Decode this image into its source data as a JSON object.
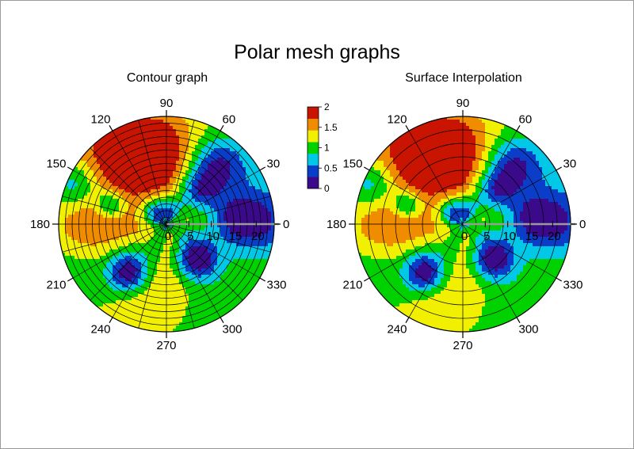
{
  "title": "Polar mesh graphs",
  "colorscale": {
    "ticks": [
      "2",
      "1.5",
      "1",
      "0.5",
      "0"
    ],
    "range": [
      0,
      2
    ],
    "colors": [
      "#3a0a8a",
      "#0a3ec8",
      "#00c8e6",
      "#00d200",
      "#f0f000",
      "#f08c00",
      "#c81400"
    ]
  },
  "chart_data": [
    {
      "type": "heatmap",
      "subtype": "polar contour",
      "title": "Contour graph",
      "theta_ticks": [
        "0",
        "30",
        "60",
        "90",
        "120",
        "150",
        "180",
        "210",
        "240",
        "270",
        "300",
        "330"
      ],
      "r_ticks": [
        "0",
        "5",
        "10",
        "15",
        "20"
      ],
      "rlim": [
        0,
        24
      ],
      "zlim": [
        0,
        2
      ],
      "grid": true
    },
    {
      "type": "heatmap",
      "subtype": "polar surface interpolation",
      "title": "Surface Interpolation",
      "theta_ticks": [
        "0",
        "30",
        "60",
        "90",
        "120",
        "150",
        "180",
        "210",
        "240",
        "270",
        "300",
        "330"
      ],
      "r_ticks": [
        "0",
        "5",
        "10",
        "15",
        "20"
      ],
      "rlim": [
        0,
        24
      ],
      "zlim": [
        0,
        2
      ],
      "grid": true
    }
  ]
}
